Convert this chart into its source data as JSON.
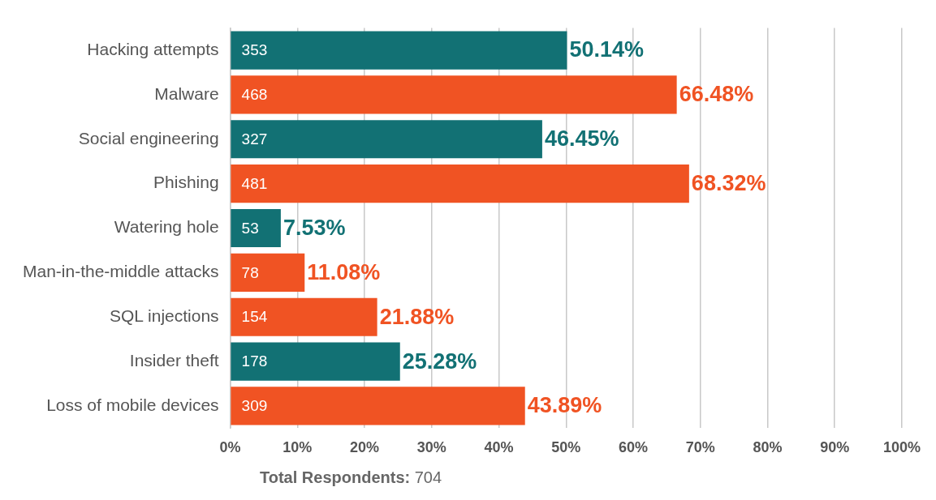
{
  "chart_data": {
    "type": "bar",
    "orientation": "horizontal",
    "categories": [
      "Hacking attempts",
      "Malware",
      "Social engineering",
      "Phishing",
      "Watering hole",
      "Man-in-the-middle attacks",
      "SQL injections",
      "Insider theft",
      "Loss of mobile devices"
    ],
    "values": [
      50.14,
      66.48,
      46.45,
      68.32,
      7.53,
      11.08,
      21.88,
      25.28,
      43.89
    ],
    "colors": [
      "#127174",
      "#f05323",
      "#127174",
      "#f05323",
      "#127174",
      "#f05323",
      "#f05323",
      "#127174",
      "#f05323"
    ],
    "value_labels": [
      "50.14%",
      "66.48%",
      "46.45%",
      "68.32%",
      "7.53%",
      "11.08%",
      "21.88%",
      "25.28%",
      "43.89%"
    ],
    "xlim": [
      0,
      100
    ],
    "xticks": [
      {
        "value": 0,
        "label": "0%"
      },
      {
        "value": 10,
        "label": "10%"
      },
      {
        "value": 20,
        "label": "20%"
      },
      {
        "value": 30,
        "label": "30%"
      },
      {
        "value": 40,
        "label": "40%"
      },
      {
        "value": 50,
        "label": "50%"
      },
      {
        "value": 60,
        "label": "60%"
      },
      {
        "value": 70,
        "label": "70%"
      },
      {
        "value": 80,
        "label": "80%"
      },
      {
        "value": 90,
        "label": "90%"
      },
      {
        "value": 100,
        "label": "100%"
      }
    ],
    "grid": "x",
    "legend": false,
    "annotations": [
      {
        "text": "353",
        "y": "Hacking attempts"
      },
      {
        "text": "468",
        "y": "Malware"
      },
      {
        "text": "327",
        "y": "Social engineering"
      },
      {
        "text": "481",
        "y": "Phishing"
      },
      {
        "text": "53",
        "y": "Watering hole"
      },
      {
        "text": "78",
        "y": "Man-in-the-middle attacks"
      },
      {
        "text": "154",
        "y": "SQL injections"
      },
      {
        "text": "178",
        "y": "Insider theft"
      },
      {
        "text": "309",
        "y": "Loss of mobile devices"
      },
      "Total Respondents: 704"
    ]
  }
}
